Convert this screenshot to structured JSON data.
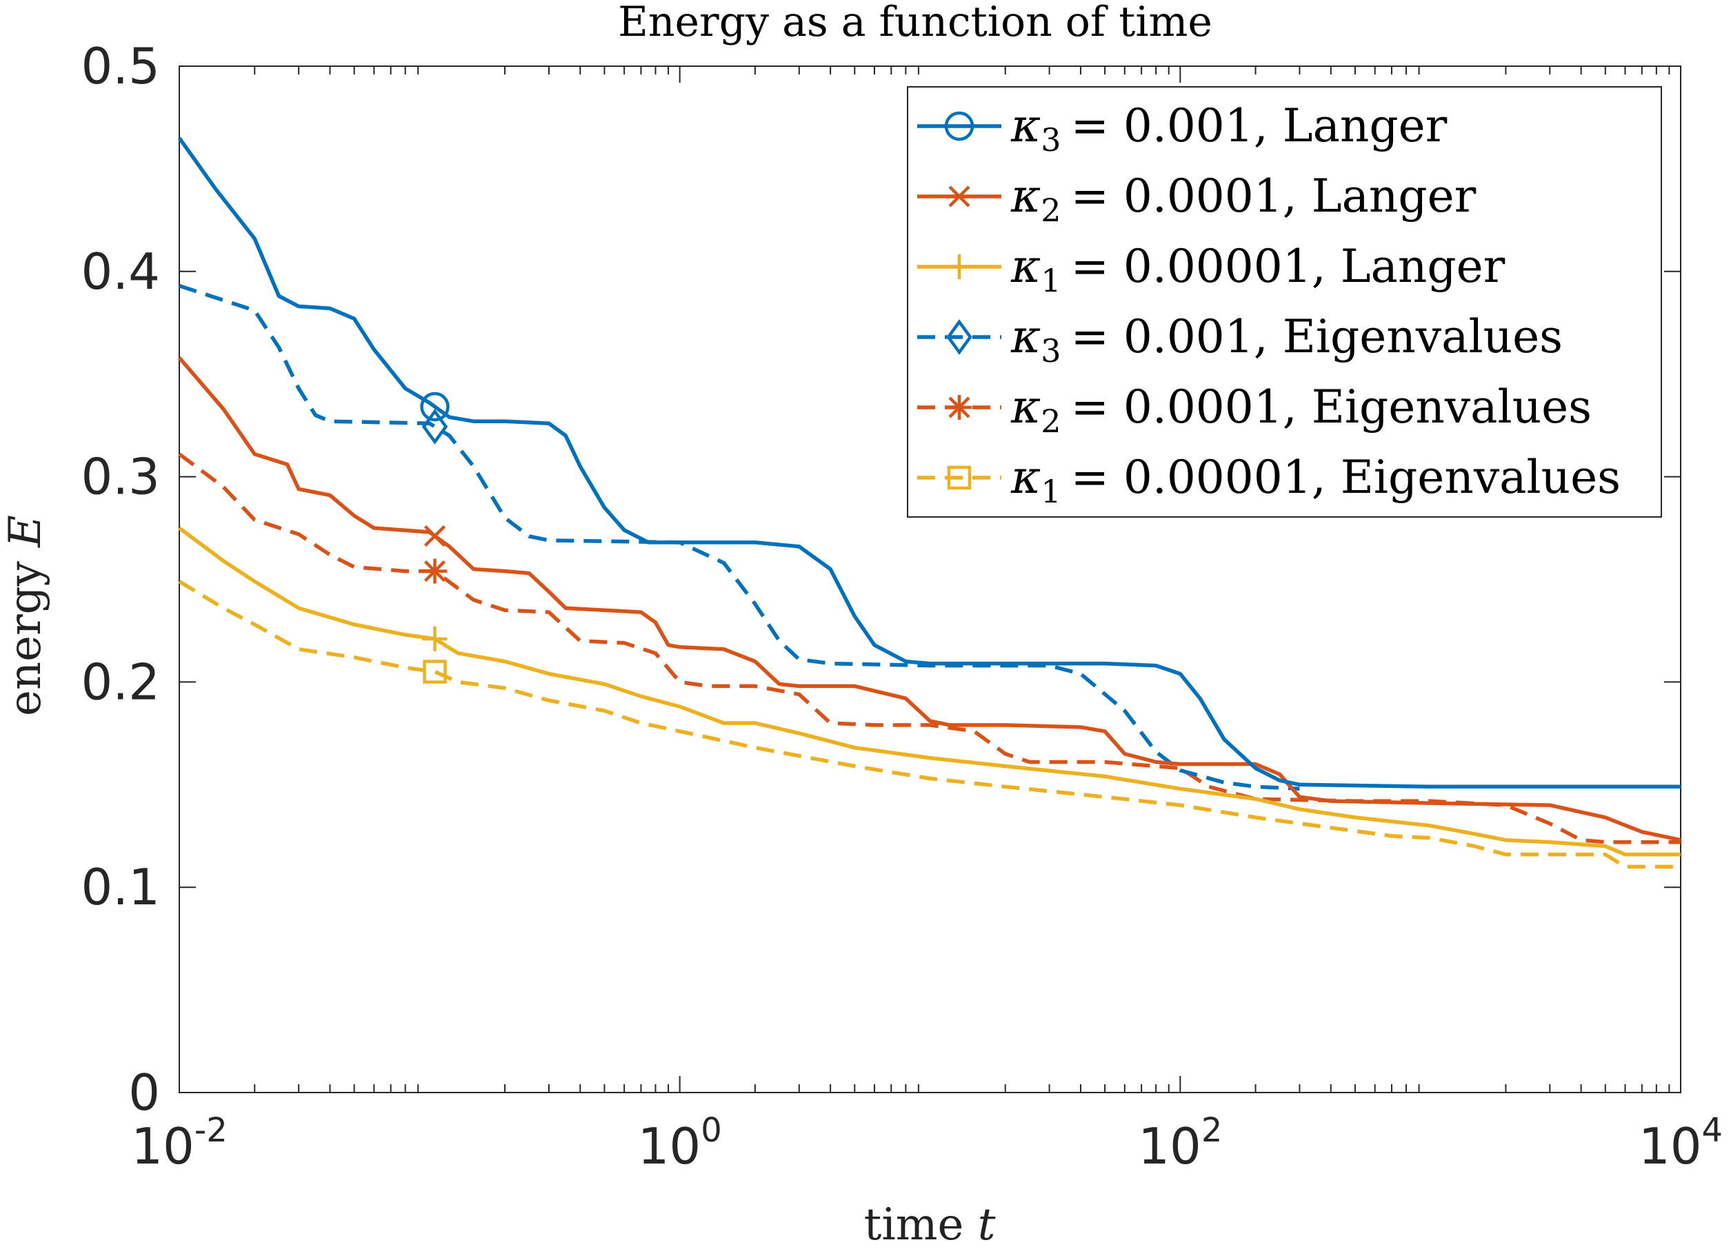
{
  "chart_data": {
    "type": "line",
    "title": "Energy as a function of time",
    "xlabel": "time t",
    "ylabel": "energy E",
    "xscale": "log",
    "xlim": [
      0.01,
      10000
    ],
    "ylim": [
      0,
      0.5
    ],
    "x_ticks": [
      {
        "value": 0.01,
        "base": "10",
        "exp": "-2"
      },
      {
        "value": 1,
        "base": "10",
        "exp": "0"
      },
      {
        "value": 100,
        "base": "10",
        "exp": "2"
      },
      {
        "value": 10000,
        "base": "10",
        "exp": "4"
      }
    ],
    "y_ticks": [
      {
        "value": 0,
        "label": "0"
      },
      {
        "value": 0.1,
        "label": "0.1"
      },
      {
        "value": 0.2,
        "label": "0.2"
      },
      {
        "value": 0.3,
        "label": "0.3"
      },
      {
        "value": 0.4,
        "label": "0.4"
      },
      {
        "value": 0.5,
        "label": "0.5"
      }
    ],
    "grid": false,
    "legend_position": "top-right",
    "series": [
      {
        "name": "κ3 = 0.001, Langer",
        "legend_kappa": "κ",
        "legend_sub": "3",
        "legend_value": "= 0.001, Langer",
        "color": "#0072BD",
        "dash": "solid",
        "marker": "circle",
        "marker_x": 0.105,
        "points": [
          [
            0.01,
            0.465
          ],
          [
            0.014,
            0.44
          ],
          [
            0.02,
            0.416
          ],
          [
            0.025,
            0.388
          ],
          [
            0.03,
            0.383
          ],
          [
            0.04,
            0.382
          ],
          [
            0.05,
            0.377
          ],
          [
            0.06,
            0.362
          ],
          [
            0.08,
            0.343
          ],
          [
            0.1,
            0.336
          ],
          [
            0.12,
            0.329
          ],
          [
            0.15,
            0.327
          ],
          [
            0.2,
            0.327
          ],
          [
            0.3,
            0.326
          ],
          [
            0.35,
            0.32
          ],
          [
            0.4,
            0.305
          ],
          [
            0.5,
            0.285
          ],
          [
            0.6,
            0.274
          ],
          [
            0.75,
            0.268
          ],
          [
            1,
            0.268
          ],
          [
            2,
            0.268
          ],
          [
            3,
            0.266
          ],
          [
            4,
            0.255
          ],
          [
            5,
            0.232
          ],
          [
            6,
            0.218
          ],
          [
            8,
            0.21
          ],
          [
            10,
            0.209
          ],
          [
            20,
            0.209
          ],
          [
            50,
            0.209
          ],
          [
            80,
            0.208
          ],
          [
            100,
            0.204
          ],
          [
            120,
            0.192
          ],
          [
            150,
            0.172
          ],
          [
            200,
            0.158
          ],
          [
            250,
            0.152
          ],
          [
            300,
            0.15
          ],
          [
            1000,
            0.149
          ],
          [
            10000,
            0.149
          ]
        ]
      },
      {
        "name": "κ2 = 0.0001, Langer",
        "legend_kappa": "κ",
        "legend_sub": "2",
        "legend_value": "= 0.0001, Langer",
        "color": "#D95319",
        "dash": "solid",
        "marker": "x",
        "marker_x": 0.105,
        "points": [
          [
            0.01,
            0.358
          ],
          [
            0.015,
            0.333
          ],
          [
            0.02,
            0.311
          ],
          [
            0.027,
            0.306
          ],
          [
            0.03,
            0.294
          ],
          [
            0.04,
            0.291
          ],
          [
            0.05,
            0.281
          ],
          [
            0.06,
            0.275
          ],
          [
            0.1,
            0.273
          ],
          [
            0.12,
            0.266
          ],
          [
            0.15,
            0.255
          ],
          [
            0.2,
            0.254
          ],
          [
            0.25,
            0.253
          ],
          [
            0.3,
            0.244
          ],
          [
            0.35,
            0.236
          ],
          [
            0.5,
            0.235
          ],
          [
            0.7,
            0.234
          ],
          [
            0.8,
            0.229
          ],
          [
            0.9,
            0.218
          ],
          [
            1,
            0.217
          ],
          [
            1.5,
            0.216
          ],
          [
            2,
            0.21
          ],
          [
            2.5,
            0.199
          ],
          [
            3,
            0.198
          ],
          [
            5,
            0.198
          ],
          [
            8,
            0.192
          ],
          [
            10,
            0.181
          ],
          [
            12,
            0.179
          ],
          [
            20,
            0.179
          ],
          [
            40,
            0.178
          ],
          [
            50,
            0.176
          ],
          [
            60,
            0.165
          ],
          [
            80,
            0.161
          ],
          [
            100,
            0.16
          ],
          [
            200,
            0.16
          ],
          [
            250,
            0.155
          ],
          [
            300,
            0.144
          ],
          [
            400,
            0.142
          ],
          [
            1000,
            0.141
          ],
          [
            3000,
            0.14
          ],
          [
            5000,
            0.134
          ],
          [
            7000,
            0.127
          ],
          [
            10000,
            0.123
          ]
        ]
      },
      {
        "name": "κ1 = 0.00001, Langer",
        "legend_kappa": "κ",
        "legend_sub": "1",
        "legend_value": "= 0.00001, Langer",
        "color": "#EDB120",
        "dash": "solid",
        "marker": "plus",
        "marker_x": 0.105,
        "points": [
          [
            0.01,
            0.275
          ],
          [
            0.015,
            0.259
          ],
          [
            0.02,
            0.249
          ],
          [
            0.03,
            0.236
          ],
          [
            0.05,
            0.228
          ],
          [
            0.08,
            0.223
          ],
          [
            0.105,
            0.221
          ],
          [
            0.13,
            0.214
          ],
          [
            0.2,
            0.21
          ],
          [
            0.3,
            0.204
          ],
          [
            0.5,
            0.199
          ],
          [
            0.7,
            0.193
          ],
          [
            1,
            0.188
          ],
          [
            1.5,
            0.18
          ],
          [
            2,
            0.18
          ],
          [
            3,
            0.175
          ],
          [
            5,
            0.168
          ],
          [
            10,
            0.163
          ],
          [
            20,
            0.159
          ],
          [
            50,
            0.154
          ],
          [
            100,
            0.148
          ],
          [
            200,
            0.143
          ],
          [
            300,
            0.138
          ],
          [
            500,
            0.134
          ],
          [
            1000,
            0.13
          ],
          [
            1500,
            0.126
          ],
          [
            2000,
            0.123
          ],
          [
            3000,
            0.122
          ],
          [
            5000,
            0.12
          ],
          [
            6000,
            0.116
          ],
          [
            10000,
            0.116
          ]
        ]
      },
      {
        "name": "κ3 = 0.001, Eigenvalues",
        "legend_kappa": "κ",
        "legend_sub": "3",
        "legend_value": "= 0.001, Eigenvalues",
        "color": "#0072BD",
        "dash": "dashed",
        "marker": "diamond",
        "marker_x": 0.105,
        "points": [
          [
            0.01,
            0.393
          ],
          [
            0.015,
            0.386
          ],
          [
            0.02,
            0.381
          ],
          [
            0.025,
            0.363
          ],
          [
            0.03,
            0.343
          ],
          [
            0.035,
            0.33
          ],
          [
            0.04,
            0.327
          ],
          [
            0.1,
            0.326
          ],
          [
            0.12,
            0.32
          ],
          [
            0.15,
            0.305
          ],
          [
            0.2,
            0.28
          ],
          [
            0.25,
            0.271
          ],
          [
            0.3,
            0.269
          ],
          [
            1,
            0.268
          ],
          [
            1.5,
            0.258
          ],
          [
            2,
            0.238
          ],
          [
            2.5,
            0.22
          ],
          [
            3,
            0.211
          ],
          [
            4,
            0.209
          ],
          [
            10,
            0.208
          ],
          [
            30,
            0.208
          ],
          [
            40,
            0.204
          ],
          [
            60,
            0.186
          ],
          [
            80,
            0.166
          ],
          [
            100,
            0.157
          ],
          [
            150,
            0.151
          ],
          [
            200,
            0.149
          ],
          [
            300,
            0.148
          ]
        ]
      },
      {
        "name": "κ2 = 0.0001, Eigenvalues",
        "legend_kappa": "κ",
        "legend_sub": "2",
        "legend_value": "= 0.0001, Eigenvalues",
        "color": "#D95319",
        "dash": "dashed",
        "marker": "asterisk",
        "marker_x": 0.105,
        "points": [
          [
            0.01,
            0.311
          ],
          [
            0.015,
            0.295
          ],
          [
            0.02,
            0.279
          ],
          [
            0.03,
            0.272
          ],
          [
            0.04,
            0.262
          ],
          [
            0.05,
            0.256
          ],
          [
            0.08,
            0.254
          ],
          [
            0.105,
            0.254
          ],
          [
            0.15,
            0.24
          ],
          [
            0.2,
            0.235
          ],
          [
            0.3,
            0.234
          ],
          [
            0.4,
            0.22
          ],
          [
            0.6,
            0.219
          ],
          [
            0.8,
            0.214
          ],
          [
            1,
            0.2
          ],
          [
            1.3,
            0.198
          ],
          [
            2,
            0.198
          ],
          [
            3,
            0.194
          ],
          [
            4,
            0.18
          ],
          [
            6,
            0.179
          ],
          [
            10,
            0.179
          ],
          [
            15,
            0.176
          ],
          [
            20,
            0.165
          ],
          [
            25,
            0.161
          ],
          [
            50,
            0.161
          ],
          [
            100,
            0.158
          ],
          [
            130,
            0.149
          ],
          [
            200,
            0.143
          ],
          [
            500,
            0.142
          ],
          [
            1000,
            0.142
          ],
          [
            2000,
            0.14
          ],
          [
            3000,
            0.131
          ],
          [
            4000,
            0.123
          ],
          [
            5000,
            0.122
          ],
          [
            10000,
            0.122
          ]
        ]
      },
      {
        "name": "κ1 = 0.00001, Eigenvalues",
        "legend_kappa": "κ",
        "legend_sub": "1",
        "legend_value": "= 0.00001, Eigenvalues",
        "color": "#EDB120",
        "dash": "dashed",
        "marker": "square",
        "marker_x": 0.105,
        "points": [
          [
            0.01,
            0.249
          ],
          [
            0.015,
            0.236
          ],
          [
            0.02,
            0.228
          ],
          [
            0.03,
            0.216
          ],
          [
            0.05,
            0.212
          ],
          [
            0.08,
            0.207
          ],
          [
            0.105,
            0.205
          ],
          [
            0.13,
            0.2
          ],
          [
            0.2,
            0.197
          ],
          [
            0.3,
            0.191
          ],
          [
            0.5,
            0.186
          ],
          [
            0.7,
            0.18
          ],
          [
            1,
            0.176
          ],
          [
            2,
            0.168
          ],
          [
            5,
            0.159
          ],
          [
            10,
            0.153
          ],
          [
            20,
            0.149
          ],
          [
            50,
            0.144
          ],
          [
            100,
            0.14
          ],
          [
            200,
            0.134
          ],
          [
            400,
            0.129
          ],
          [
            700,
            0.125
          ],
          [
            1000,
            0.124
          ],
          [
            1500,
            0.12
          ],
          [
            2000,
            0.116
          ],
          [
            3000,
            0.116
          ],
          [
            5000,
            0.116
          ],
          [
            6000,
            0.11
          ],
          [
            10000,
            0.11
          ]
        ]
      }
    ]
  }
}
